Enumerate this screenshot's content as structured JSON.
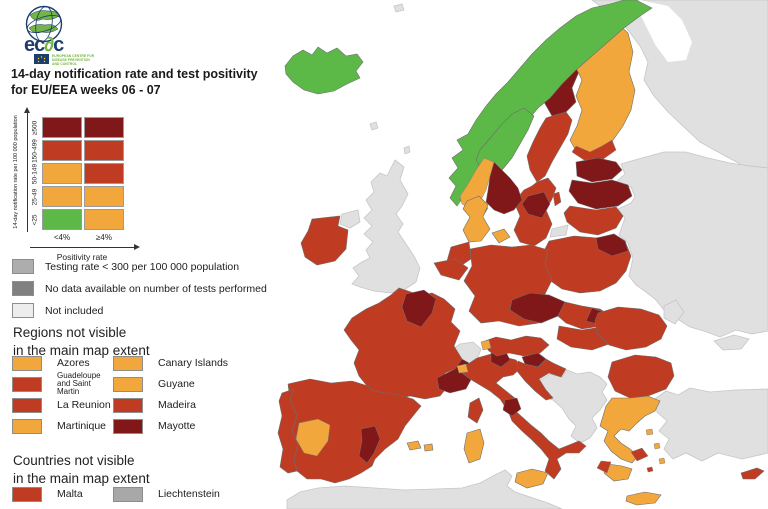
{
  "header": {
    "logo": {
      "t1": "ec",
      "t2": "∂",
      "t3": "c",
      "org_lines": [
        "EUROPEAN CENTRE FOR",
        "DISEASE PREVENTION",
        "AND CONTROL"
      ]
    },
    "title_line1": "14-day notification rate and test positivity",
    "title_line2": "for EU/EEA weeks 06 - 07"
  },
  "matrix_legend": {
    "y_axis_label": "14-day notification rate per 100 000 population",
    "x_axis_label": "Positivity rate",
    "row_labels": [
      "≥500",
      "150-499",
      "50-149",
      "25-49",
      "<25"
    ],
    "col_labels": [
      "<4%",
      "≥4%"
    ],
    "cells": [
      [
        "darkred",
        "darkred"
      ],
      [
        "red",
        "red"
      ],
      [
        "orange",
        "red"
      ],
      [
        "orange",
        "orange"
      ],
      [
        "green",
        "orange"
      ]
    ]
  },
  "simple_legend": [
    {
      "color_key": "gray_testing",
      "label": "Testing rate < 300 per 100 000 population"
    },
    {
      "color_key": "gray_nodata",
      "label": "No data available on number of tests performed"
    },
    {
      "color_key": "gray_notincluded",
      "label": "Not included"
    }
  ],
  "regions_section": {
    "heading_line1": "Regions not visible",
    "heading_line2": "in the main map extent",
    "items": [
      {
        "label": "Azores",
        "color_key": "orange"
      },
      {
        "label": "Canary Islands",
        "color_key": "orange"
      },
      {
        "label": "Guadeloupe and Saint Martin",
        "color_key": "red"
      },
      {
        "label": "Guyane",
        "color_key": "orange"
      },
      {
        "label": "La Reunion",
        "color_key": "red"
      },
      {
        "label": "Madeira",
        "color_key": "red"
      },
      {
        "label": "Martinique",
        "color_key": "orange"
      },
      {
        "label": "Mayotte",
        "color_key": "darkred"
      }
    ]
  },
  "countries_section": {
    "heading_line1": "Countries not visible",
    "heading_line2": "in the main map extent",
    "items": [
      {
        "label": "Malta",
        "color_key": "red"
      },
      {
        "label": "Liechtenstein",
        "color_key": "gray_liechtenstein"
      }
    ]
  },
  "colors": {
    "darkred": "#801719",
    "red": "#BF3B22",
    "orange": "#F1A73C",
    "green": "#5CB947",
    "gray_testing": "#ADADAD",
    "gray_nodata": "#808080",
    "gray_notincluded": "#EDEDED",
    "gray_liechtenstein": "#A8A8A8",
    "land": "#E0E0E0",
    "sea": "#FFFFFF",
    "logo_navy": "#1C3D6E",
    "logo_green": "#74B643"
  },
  "map": {
    "region_fills": {
      "russia_north": "land",
      "white_sea": "sea",
      "east_europe": "land",
      "crimea": "land",
      "moldova": "land",
      "turkey": "land",
      "africa": "land",
      "uk": "land",
      "northern_ireland": "land",
      "switzerland": "land",
      "balkans": "land",
      "kaliningrad": "land",
      "faroe": "land",
      "shetland": "land",
      "svalbard_speck": "land",
      "iceland": "green",
      "sweden_north": "darkred",
      "sweden_mid": "red",
      "sweden_south": "red",
      "sweden_southeast": "darkred",
      "gotland": "red",
      "finland": "orange",
      "finland_south": "red",
      "norway_coast": "green",
      "norway_interior": "green",
      "norway_west": "orange",
      "norway_southeast": "darkred",
      "norway_south": "green",
      "estonia": "darkred",
      "latvia": "darkred",
      "lithuania": "red",
      "poland": "red",
      "poland_northeast": "darkred",
      "denmark": "orange",
      "denmark_islands": "orange",
      "germany": "red",
      "netherlands": "red",
      "belgium": "red",
      "france": "red",
      "france_northeast": "darkred",
      "france_southeast": "darkred",
      "corsica": "red",
      "spain": "red",
      "portugal": "red",
      "spain_extremadura": "orange",
      "spain_valencia": "darkred",
      "balearic_1": "orange",
      "balearic_2": "orange",
      "italy": "red",
      "italy_trentino": "darkred",
      "italy_umbria": "darkred",
      "sardinia": "orange",
      "sicily": "orange",
      "austria": "red",
      "austria_vorarlberg": "orange",
      "italy_aosta": "orange",
      "czechia": "darkred",
      "slovakia": "red",
      "slovakia_east": "darkred",
      "hungary": "red",
      "slovenia": "darkred",
      "croatia": "red",
      "romania": "red",
      "bulgaria": "red",
      "greece": "orange",
      "greece_peloponnese": "orange",
      "greece_attica": "red",
      "greece_pelop_west": "red",
      "aegean_1": "orange",
      "aegean_2": "orange",
      "aegean_3": "orange",
      "aegean_4": "red",
      "crete": "orange",
      "cyprus": "red",
      "ireland": "red"
    }
  }
}
